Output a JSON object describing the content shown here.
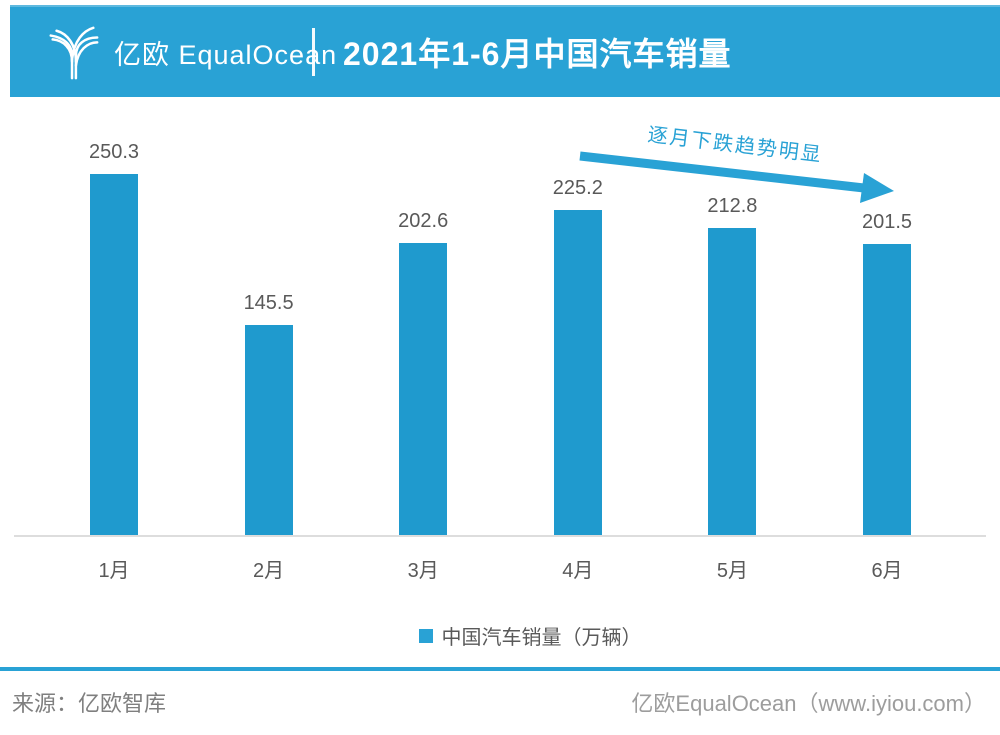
{
  "header": {
    "logo_text": "亿欧 EqualOcean",
    "title": "2021年1-6月中国汽车销量"
  },
  "annotation": {
    "text": "逐月下跌趋势明显"
  },
  "legend": {
    "label": "中国汽车销量（万辆）"
  },
  "footer": {
    "source": "来源：亿欧智库",
    "site": "亿欧EqualOcean（www.iyiou.com）"
  },
  "colors": {
    "accent": "#29a2d5",
    "bar": "#1f9ace",
    "label_gray": "#595959",
    "footer_gray": "#7f7f7f",
    "baseline_gray": "#dddddd"
  },
  "chart_data": {
    "type": "bar",
    "title": "2021年1-6月中国汽车销量",
    "categories": [
      "1月",
      "2月",
      "3月",
      "4月",
      "5月",
      "6月"
    ],
    "values": [
      250.3,
      145.5,
      202.6,
      225.2,
      212.8,
      201.5
    ],
    "series_name": "中国汽车销量（万辆）",
    "unit": "万辆",
    "xlabel": "",
    "ylabel": "",
    "ylim": [
      0,
      260
    ],
    "grid": false,
    "data_labels": true,
    "legend_position": "bottom",
    "annotations": [
      "逐月下跌趋势明显"
    ]
  }
}
